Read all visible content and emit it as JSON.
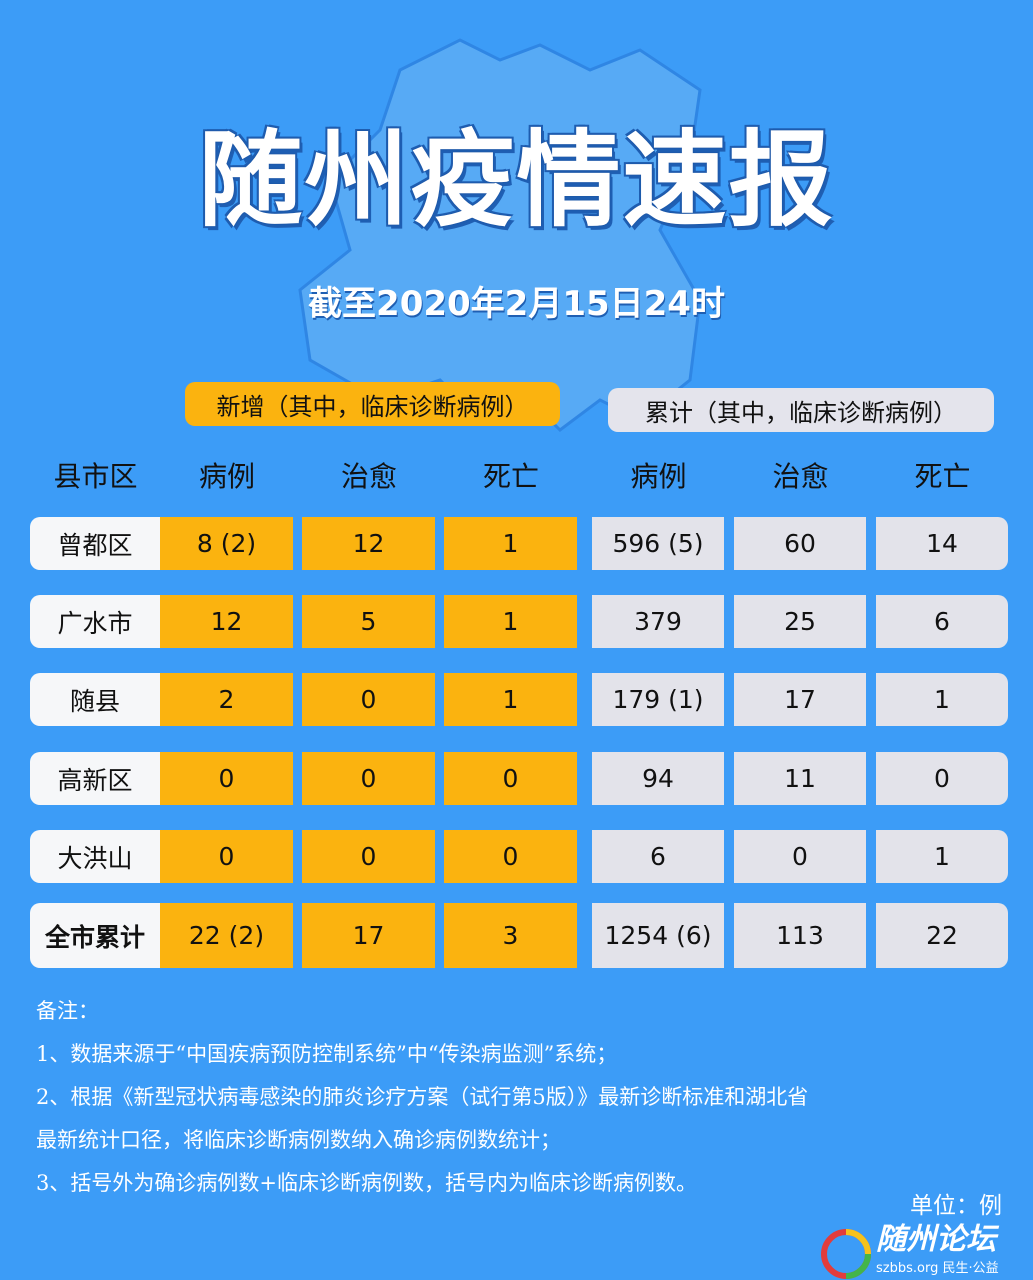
{
  "title": "随州疫情速报",
  "subtitle": "截至2020年2月15日24时",
  "groups": {
    "new": "新增（其中，临床诊断病例）",
    "cumulative": "累计（其中，临床诊断病例）"
  },
  "headers": [
    "县市区",
    "病例",
    "治愈",
    "死亡",
    "病例",
    "治愈",
    "死亡"
  ],
  "rows": [
    [
      "曾都区",
      "8 (2)",
      "12",
      "1",
      "596 (5)",
      "60",
      "14"
    ],
    [
      "广水市",
      "12",
      "5",
      "1",
      "379",
      "25",
      "6"
    ],
    [
      "随县",
      "2",
      "0",
      "1",
      "179 (1)",
      "17",
      "1"
    ],
    [
      "高新区",
      "0",
      "0",
      "0",
      "94",
      "11",
      "0"
    ],
    [
      "大洪山",
      "0",
      "0",
      "0",
      "6",
      "0",
      "1"
    ],
    [
      "全市累计",
      "22 (2)",
      "17",
      "3",
      "1254 (6)",
      "113",
      "22"
    ]
  ],
  "notes": [
    "备注：",
    "1、数据来源于“中国疾病预防控制系统”中“传染病监测”系统；",
    "2、根据《新型冠状病毒感染的肺炎诊疗方案（试行第5版）》最新诊断标准和湖北省",
    "最新统计口径，将临床诊断病例数纳入确诊病例数统计；",
    "3、括号外为确诊病例数+临床诊断病例数，括号内为临床诊断病例数。"
  ],
  "unit": "单位：例",
  "logo": {
    "name": "随州论坛",
    "sub": "szbbs.org 民生·公益"
  },
  "colors": {
    "background": "#3c9cf7",
    "new": "#fbb30f",
    "cumulative": "#e3e3ea"
  }
}
